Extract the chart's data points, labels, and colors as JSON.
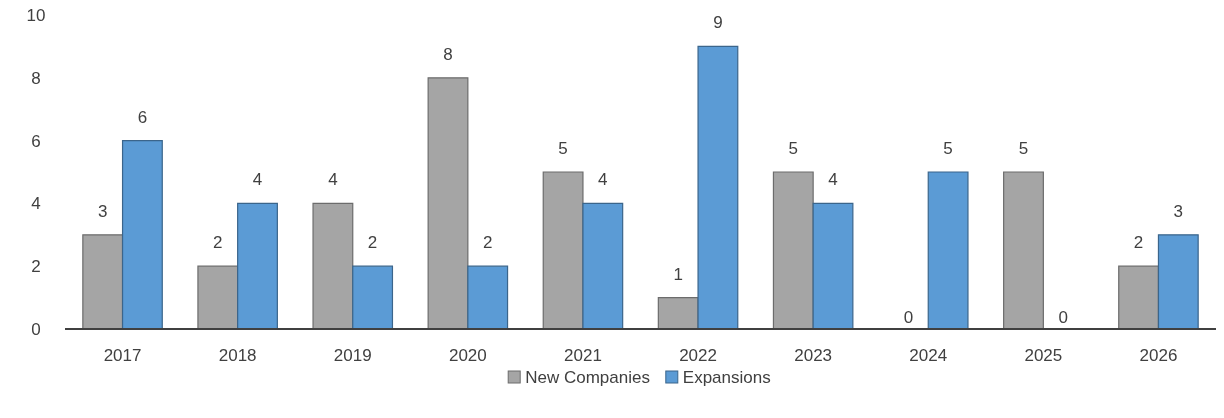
{
  "chart_data": {
    "type": "bar",
    "categories": [
      "2017",
      "2018",
      "2019",
      "2020",
      "2021",
      "2022",
      "2023",
      "2024",
      "2025",
      "2026"
    ],
    "series": [
      {
        "name": "New Companies",
        "color": "#a5a5a5",
        "values": [
          3,
          2,
          4,
          8,
          5,
          1,
          5,
          0,
          5,
          2
        ]
      },
      {
        "name": "Expansions",
        "color": "#5b9bd5",
        "values": [
          6,
          4,
          2,
          2,
          4,
          9,
          4,
          5,
          0,
          3
        ]
      }
    ],
    "ylim": [
      0,
      10
    ],
    "yticks": [
      0,
      2,
      4,
      6,
      8,
      10
    ],
    "data_labels": true,
    "legend": "bottom",
    "grid": false
  }
}
